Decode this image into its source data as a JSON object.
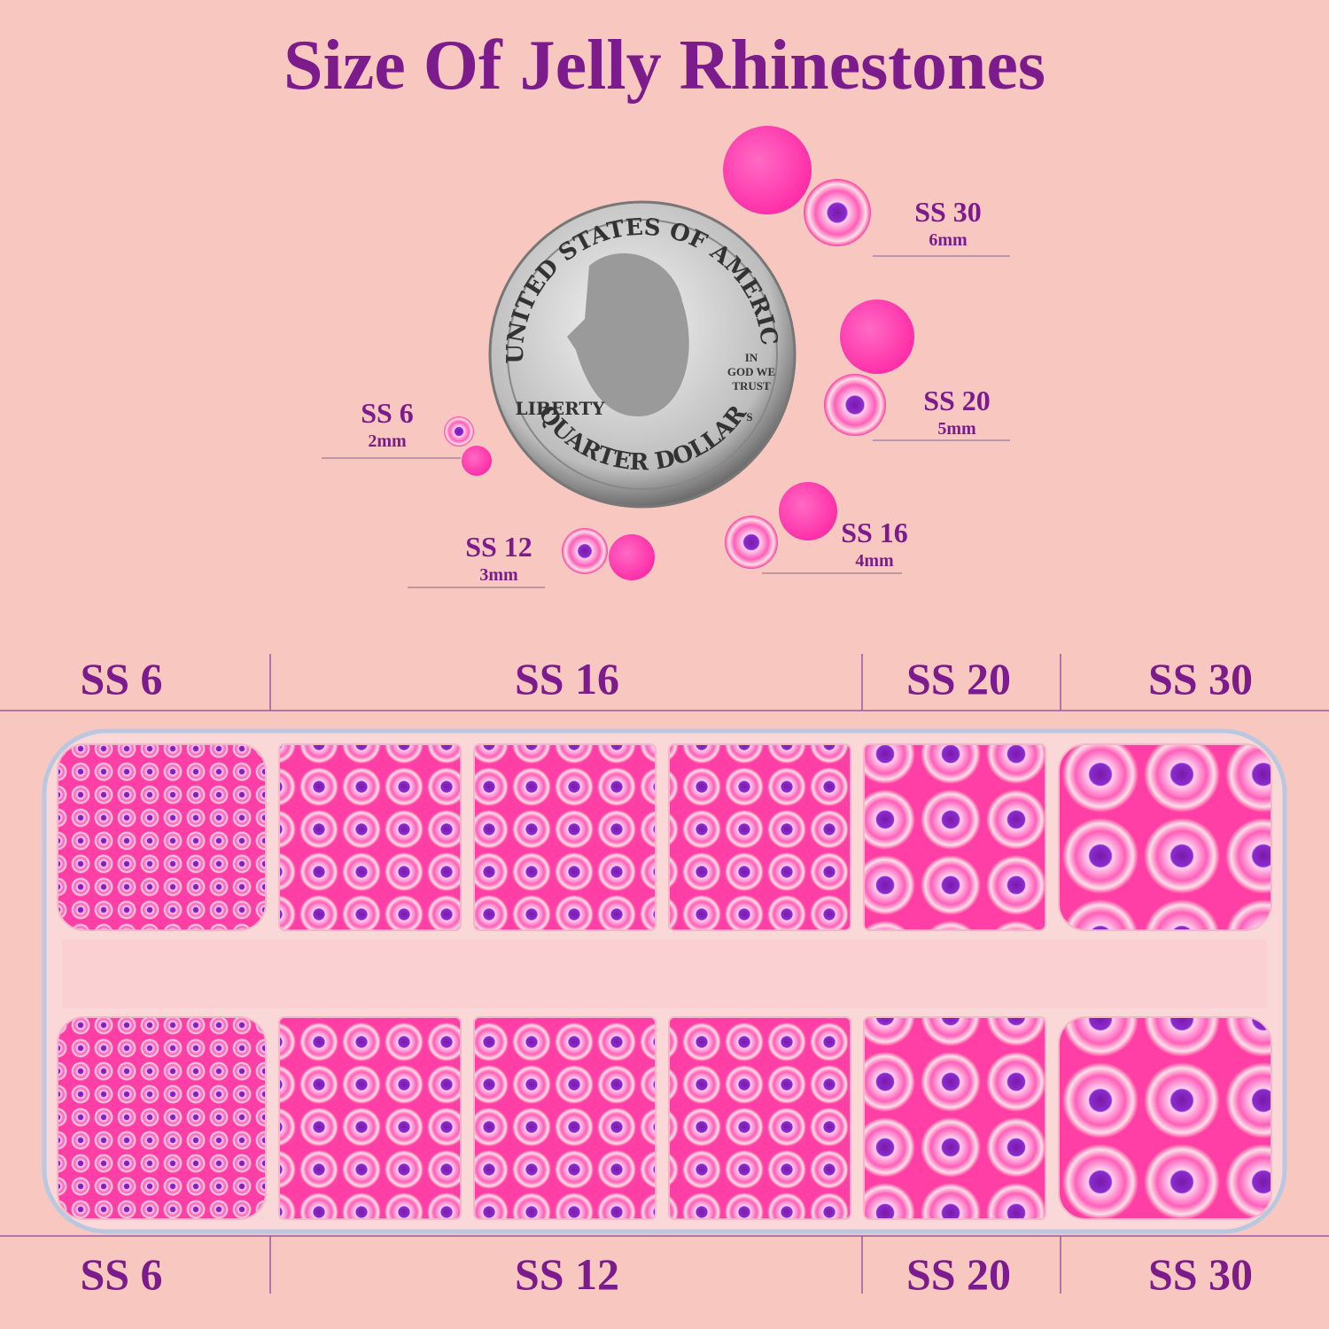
{
  "title": "Size Of Jelly Rhinestones",
  "coin": {
    "top_text": "UNITED STATES OF AMERICA",
    "left_text": "LIBERTY",
    "motto": [
      "IN",
      "GOD WE",
      "TRUST"
    ],
    "mint": "S",
    "bottom_text": "QUARTER DOLLAR"
  },
  "callouts": [
    {
      "label": "SS 30",
      "size": "6mm"
    },
    {
      "label": "SS 20",
      "size": "5mm"
    },
    {
      "label": "SS 6",
      "size": "2mm"
    },
    {
      "label": "SS 12",
      "size": "3mm"
    },
    {
      "label": "SS 16",
      "size": "4mm"
    }
  ],
  "tray_top_labels": [
    "SS 6",
    "SS 16",
    "SS 20",
    "SS 30"
  ],
  "tray_bottom_labels": [
    "SS 6",
    "SS 12",
    "SS 20",
    "SS 30"
  ]
}
